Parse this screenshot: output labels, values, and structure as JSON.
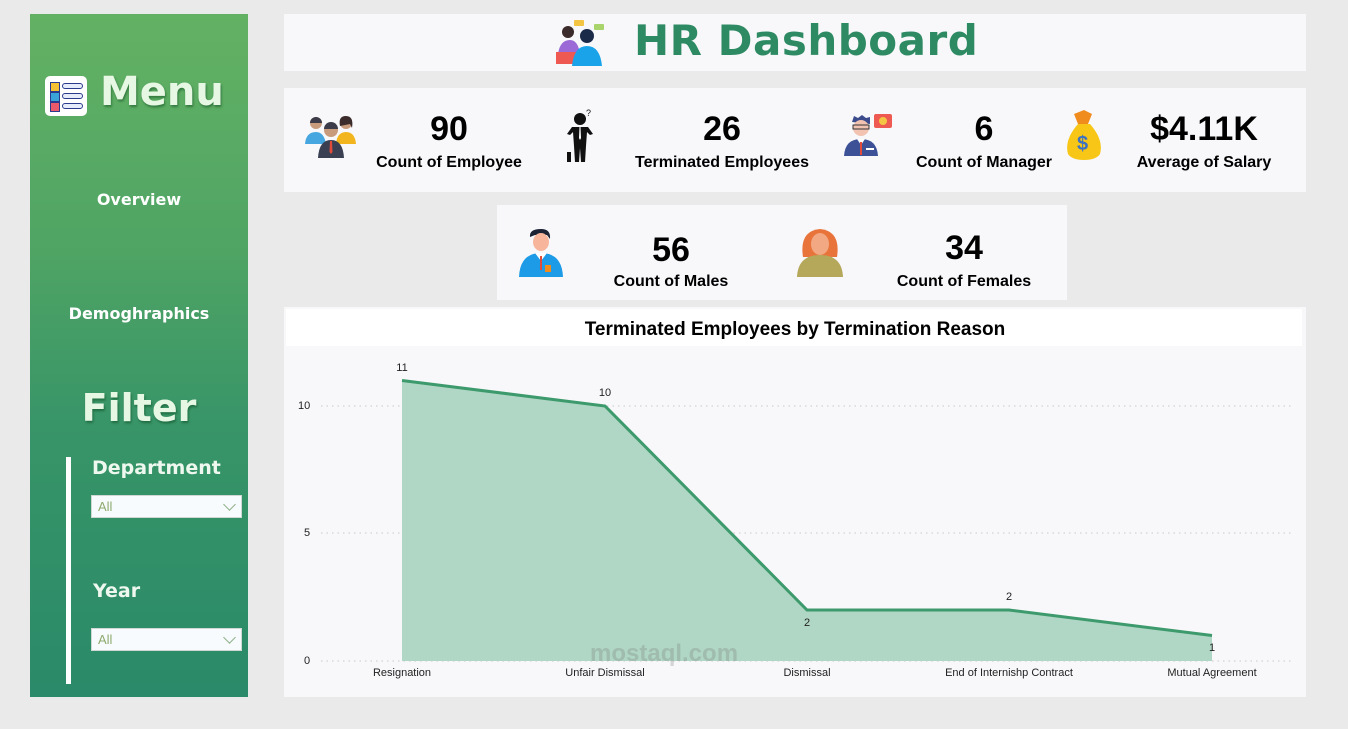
{
  "sidebar": {
    "menu_title": "Menu",
    "nav": [
      {
        "label": "Overview"
      },
      {
        "label": "Demoghraphics"
      }
    ],
    "filter_title": "Filter",
    "filters": [
      {
        "label": "Department",
        "value": "All"
      },
      {
        "label": "Year",
        "value": "All"
      }
    ]
  },
  "header": {
    "title": "HR Dashboard"
  },
  "kpis": [
    {
      "value": "90",
      "label": "Count of Employee",
      "icon": "employees-group-icon"
    },
    {
      "value": "26",
      "label": "Terminated Employees",
      "icon": "terminated-man-icon"
    },
    {
      "value": "6",
      "label": "Count of Manager",
      "icon": "manager-icon"
    },
    {
      "value": "$4.11K",
      "label": "Average of Salary",
      "icon": "money-bag-icon"
    }
  ],
  "gender_kpis": [
    {
      "value": "56",
      "label": "Count of Males",
      "icon": "male-icon"
    },
    {
      "value": "34",
      "label": "Count of Females",
      "icon": "female-icon"
    }
  ],
  "colors": {
    "brand_green": "#2e8a63",
    "line": "#3d9a6c",
    "area": "#b0d7c5"
  },
  "watermark": {
    "text": "mostaql.com"
  },
  "chart_data": {
    "type": "area",
    "title": "Terminated Employees by Termination Reason",
    "categories": [
      "Resignation",
      "Unfair Dismissal",
      "Dismissal",
      "End of Internishp Contract",
      "Mutual Agreement"
    ],
    "values": [
      11,
      10,
      2,
      2,
      1
    ],
    "data_labels": [
      "11",
      "10",
      "2",
      "2",
      "1"
    ],
    "xlabel": "",
    "ylabel": "",
    "yticks": [
      "0",
      "5",
      "10"
    ],
    "ylim": [
      0,
      11
    ],
    "grid": "horizontal dotted",
    "legend": "none"
  }
}
